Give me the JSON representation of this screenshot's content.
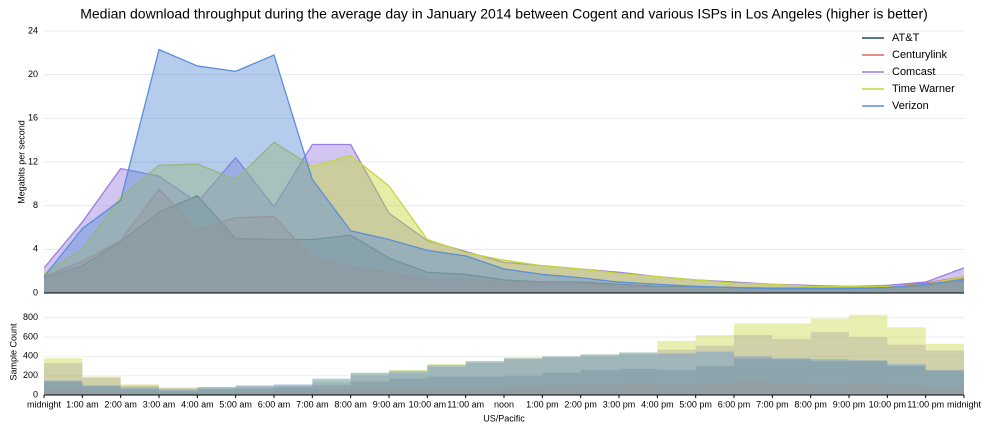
{
  "chart_data": [
    {
      "type": "area",
      "title": "Median download throughput during the average day in January 2014 between Cogent and various ISPs in Los Angeles (higher is better)",
      "ylabel": "Megabits per second",
      "x": [
        0,
        1,
        2,
        3,
        4,
        5,
        6,
        7,
        8,
        9,
        10,
        11,
        12,
        13,
        14,
        15,
        16,
        17,
        18,
        19,
        20,
        21,
        22,
        23,
        24
      ],
      "xlim": [
        0,
        24
      ],
      "ylim": [
        0,
        24
      ],
      "yticks": [
        0,
        4,
        8,
        12,
        16,
        20,
        24
      ],
      "grid": true,
      "legend": "top-right",
      "series": [
        {
          "name": "AT&T",
          "color": "#1b4d5c",
          "values": [
            1.4,
            2.5,
            4.7,
            7.4,
            8.9,
            5.0,
            4.9,
            4.9,
            5.3,
            3.2,
            1.9,
            1.7,
            1.2,
            1.0,
            1.0,
            0.8,
            0.6,
            0.6,
            0.5,
            0.4,
            0.4,
            0.4,
            0.5,
            0.7,
            1.3
          ]
        },
        {
          "name": "Centurylink",
          "color": "#e06464",
          "values": [
            1.5,
            2.9,
            4.8,
            9.5,
            5.8,
            6.9,
            7.0,
            3.3,
            2.4,
            1.9,
            1.2,
            1.2,
            1.0,
            0.9,
            0.9,
            0.6,
            0.5,
            0.5,
            0.5,
            0.5,
            0.5,
            0.5,
            0.7,
            0.9,
            1.5
          ]
        },
        {
          "name": "Comcast",
          "color": "#9b7ee0",
          "values": [
            2.3,
            6.5,
            11.4,
            10.7,
            8.3,
            12.4,
            7.9,
            13.6,
            13.6,
            7.3,
            4.8,
            3.8,
            2.8,
            2.5,
            2.2,
            1.9,
            1.5,
            1.2,
            1.0,
            0.8,
            0.7,
            0.6,
            0.7,
            1.0,
            2.3
          ]
        },
        {
          "name": "Time Warner",
          "color": "#c5d63a",
          "values": [
            1.8,
            4.0,
            8.8,
            11.7,
            11.8,
            10.4,
            13.8,
            11.6,
            12.6,
            9.8,
            4.9,
            3.7,
            3.0,
            2.5,
            2.2,
            1.8,
            1.5,
            1.2,
            0.9,
            0.8,
            0.6,
            0.6,
            0.6,
            0.8,
            1.5
          ]
        },
        {
          "name": "Verizon",
          "color": "#5b8fd8",
          "values": [
            1.5,
            5.9,
            8.5,
            22.3,
            20.8,
            20.3,
            21.8,
            10.4,
            5.7,
            4.9,
            3.9,
            3.4,
            2.2,
            1.7,
            1.4,
            1.0,
            0.8,
            0.6,
            0.5,
            0.4,
            0.4,
            0.4,
            0.5,
            0.8,
            1.2
          ]
        }
      ]
    },
    {
      "type": "histogram",
      "ylabel": "Sample Count",
      "xlabel": "US/Pacific",
      "bins": [
        0,
        1,
        2,
        3,
        4,
        5,
        6,
        7,
        8,
        9,
        10,
        11,
        12,
        13,
        14,
        15,
        16,
        17,
        18,
        19,
        20,
        21,
        22,
        23,
        24
      ],
      "xlim": [
        0,
        24
      ],
      "xticks": [
        {
          "value": 0,
          "label": "midnight"
        },
        {
          "value": 1,
          "label": "1:00 am"
        },
        {
          "value": 2,
          "label": "2:00 am"
        },
        {
          "value": 3,
          "label": "3:00 am"
        },
        {
          "value": 4,
          "label": "4:00 am"
        },
        {
          "value": 5,
          "label": "5:00 am"
        },
        {
          "value": 6,
          "label": "6:00 am"
        },
        {
          "value": 7,
          "label": "7:00 am"
        },
        {
          "value": 8,
          "label": "8:00 am"
        },
        {
          "value": 9,
          "label": "9:00 am"
        },
        {
          "value": 10,
          "label": "10:00 am"
        },
        {
          "value": 11,
          "label": "11:00 am"
        },
        {
          "value": 12,
          "label": "noon"
        },
        {
          "value": 13,
          "label": "1:00 pm"
        },
        {
          "value": 14,
          "label": "2:00 pm"
        },
        {
          "value": 15,
          "label": "3:00 pm"
        },
        {
          "value": 16,
          "label": "4:00 pm"
        },
        {
          "value": 17,
          "label": "5:00 pm"
        },
        {
          "value": 18,
          "label": "6:00 pm"
        },
        {
          "value": 19,
          "label": "7:00 pm"
        },
        {
          "value": 20,
          "label": "8:00 pm"
        },
        {
          "value": 21,
          "label": "9:00 pm"
        },
        {
          "value": 22,
          "label": "10:00 pm"
        },
        {
          "value": 23,
          "label": "11:00 pm"
        },
        {
          "value": 24,
          "label": "midnight"
        }
      ],
      "ylim": [
        0,
        900
      ],
      "yticks": [
        0,
        200,
        400,
        600,
        800
      ],
      "series": [
        {
          "name": "AT&T",
          "color": "#1b4d5c",
          "values": [
            140,
            90,
            60,
            40,
            60,
            70,
            80,
            100,
            140,
            170,
            190,
            190,
            200,
            230,
            260,
            270,
            260,
            300,
            380,
            370,
            350,
            350,
            300,
            250
          ]
        },
        {
          "name": "Centurylink",
          "color": "#e06464",
          "values": [
            60,
            40,
            30,
            20,
            20,
            30,
            40,
            50,
            60,
            70,
            80,
            80,
            90,
            100,
            110,
            120,
            110,
            120,
            130,
            120,
            110,
            120,
            100,
            80
          ]
        },
        {
          "name": "Comcast",
          "color": "#9b7ee0",
          "values": [
            330,
            180,
            100,
            70,
            80,
            90,
            100,
            130,
            200,
            230,
            290,
            330,
            370,
            390,
            400,
            420,
            470,
            510,
            620,
            580,
            650,
            600,
            520,
            460
          ]
        },
        {
          "name": "Time Warner",
          "color": "#c5d63a",
          "values": [
            380,
            190,
            110,
            80,
            80,
            90,
            100,
            160,
            230,
            260,
            320,
            350,
            390,
            400,
            420,
            440,
            560,
            620,
            740,
            740,
            790,
            830,
            700,
            530
          ]
        },
        {
          "name": "Verizon",
          "color": "#5b8fd8",
          "values": [
            150,
            100,
            80,
            60,
            80,
            100,
            110,
            170,
            230,
            250,
            310,
            350,
            380,
            400,
            420,
            440,
            430,
            450,
            400,
            380,
            370,
            360,
            320,
            260
          ]
        }
      ]
    }
  ]
}
